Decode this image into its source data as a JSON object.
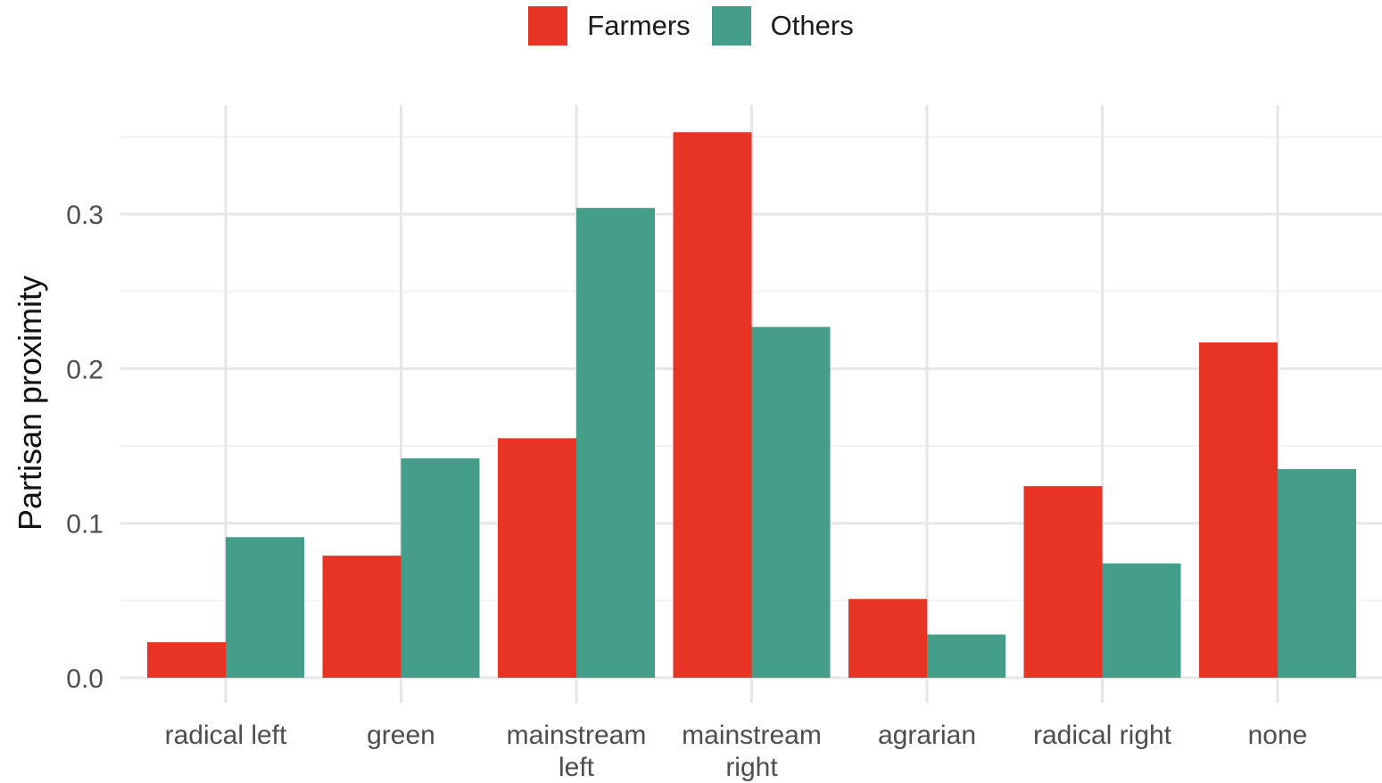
{
  "chart_data": {
    "type": "bar",
    "title": "",
    "xlabel": "",
    "ylabel": "Partisan proximity",
    "categories": [
      [
        "radical left"
      ],
      [
        "green"
      ],
      [
        "mainstream",
        "left"
      ],
      [
        "mainstream",
        "right"
      ],
      [
        "agrarian"
      ],
      [
        "radical right"
      ],
      [
        "none"
      ]
    ],
    "series": [
      {
        "name": "Farmers",
        "color": "#e83425",
        "values": [
          0.023,
          0.079,
          0.155,
          0.353,
          0.051,
          0.124,
          0.217
        ]
      },
      {
        "name": "Others",
        "color": "#449e8a",
        "values": [
          0.091,
          0.142,
          0.304,
          0.227,
          0.028,
          0.074,
          0.135
        ]
      }
    ],
    "ylim": [
      0,
      0.35
    ],
    "yticks": [
      "0.0",
      "0.1",
      "0.2",
      "0.3"
    ],
    "ytick_values": [
      0,
      0.1,
      0.2,
      0.3
    ],
    "grid": true,
    "legend_position": "top"
  }
}
